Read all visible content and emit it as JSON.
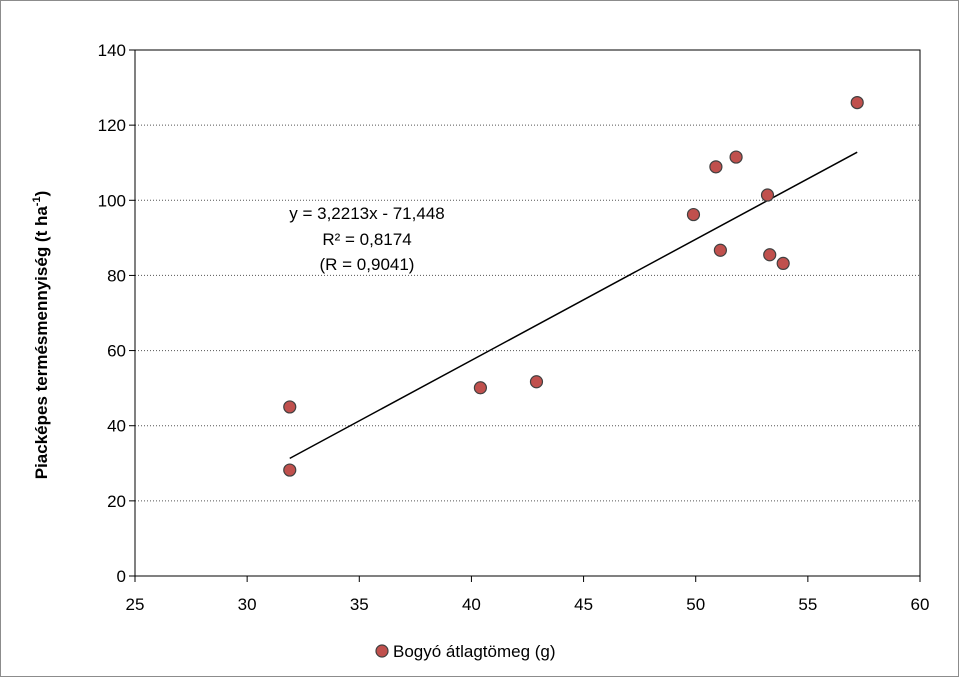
{
  "chart_data": {
    "type": "scatter",
    "title": "",
    "xlabel": "",
    "ylabel_main": "Piacképes termésmennyiség (t ha",
    "ylabel_sup": "-1",
    "ylabel_close": ")",
    "xlim": [
      25,
      60
    ],
    "ylim": [
      0,
      140
    ],
    "x_ticks": [
      25,
      30,
      35,
      40,
      45,
      50,
      55,
      60
    ],
    "y_ticks": [
      0,
      20,
      40,
      60,
      80,
      100,
      120,
      140
    ],
    "grid": "horizontal dotted",
    "legend_position": "bottom",
    "series": [
      {
        "name": "Bogyó átlagtömeg (g)",
        "color": "#c0504d",
        "edge_color": "#404040",
        "points": [
          {
            "x": 31.9,
            "y": 45.0
          },
          {
            "x": 31.9,
            "y": 28.2
          },
          {
            "x": 40.4,
            "y": 50.1
          },
          {
            "x": 42.9,
            "y": 51.7
          },
          {
            "x": 49.9,
            "y": 96.2
          },
          {
            "x": 50.9,
            "y": 108.9
          },
          {
            "x": 51.1,
            "y": 86.7
          },
          {
            "x": 51.8,
            "y": 111.5
          },
          {
            "x": 53.2,
            "y": 101.4
          },
          {
            "x": 53.3,
            "y": 85.5
          },
          {
            "x": 53.9,
            "y": 83.2
          },
          {
            "x": 57.2,
            "y": 126.0
          }
        ]
      }
    ],
    "trendline": {
      "slope": 3.2213,
      "intercept": -71.448,
      "x_start": 31.9,
      "x_end": 57.2,
      "color": "#000000"
    },
    "annotations": [
      "y = 3,2213x - 71,448",
      "R² = 0,8174",
      "(R = 0,9041)"
    ]
  }
}
